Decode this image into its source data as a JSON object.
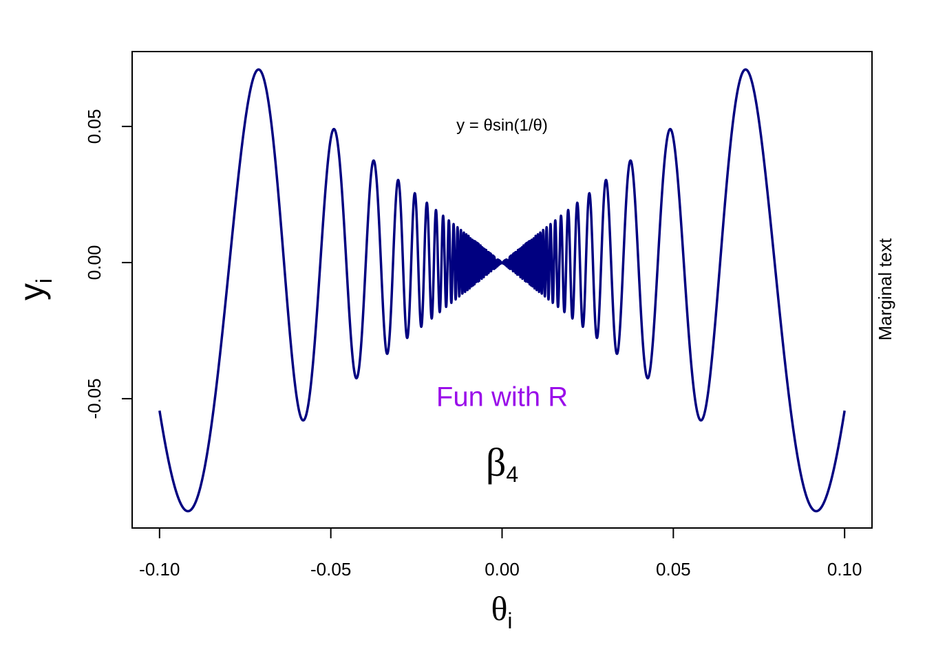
{
  "chart_data": {
    "type": "line",
    "function": "y = θsin(1/θ)",
    "xlim": [
      -0.108,
      0.108
    ],
    "ylim": [
      -0.0975,
      0.0775
    ],
    "x_ticks": [
      {
        "value": -0.1,
        "label": "-0.10"
      },
      {
        "value": -0.05,
        "label": "-0.05"
      },
      {
        "value": 0.0,
        "label": "0.00"
      },
      {
        "value": 0.05,
        "label": "0.05"
      },
      {
        "value": 0.1,
        "label": "0.10"
      }
    ],
    "y_ticks": [
      {
        "value": -0.05,
        "label": "-0.05"
      },
      {
        "value": 0.0,
        "label": "0.00"
      },
      {
        "value": 0.05,
        "label": "0.05"
      }
    ],
    "xlabel": {
      "symbol": "θ",
      "subscript": "i"
    },
    "ylabel": {
      "symbol": "y",
      "subscript": "i"
    },
    "series": [
      {
        "x_range": [
          -0.1,
          0.1
        ],
        "samples": 4001,
        "color": "#000080"
      }
    ],
    "annotations": {
      "formula": {
        "text": "y = θsin(1/θ)",
        "x": 0.0,
        "y": 0.05
      },
      "fun": {
        "text": "Fun with R",
        "x": 0.0,
        "y": -0.05,
        "color": "#9A0EEA"
      },
      "beta": {
        "symbol": "β",
        "subscript": "4",
        "x": 0.0,
        "y": -0.075
      }
    },
    "margin_text": "Marginal text",
    "grid": false
  }
}
